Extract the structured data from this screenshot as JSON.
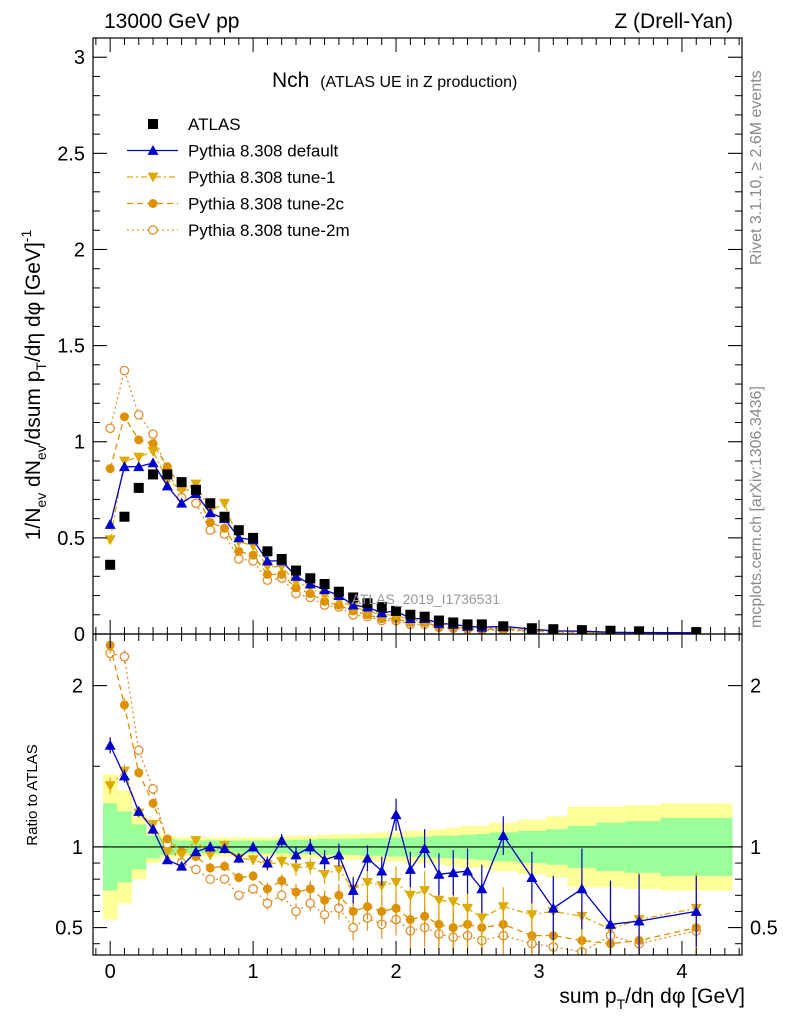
{
  "header": {
    "energy_label": "13000 GeV pp",
    "process_label": "Z (Drell-Yan)",
    "plot_title": "Nch",
    "plot_subtitle": "(ATLAS UE in Z production)",
    "watermark": "ATLAS_2019_I1736531",
    "side_label_rivet": "Rivet 3.1.10, ≥ 2.6M events",
    "side_label_mcplots": "mcplots.cern.ch [arXiv:1306.3436]"
  },
  "colors": {
    "atlas": "#000000",
    "default": "#0000cc",
    "tune1": "#ddaa00",
    "tune2c": "#dd9000",
    "tune2m": "#e09030",
    "band_inner": "#99ff99",
    "band_outer": "#ffff99"
  },
  "chart_data": [
    {
      "type": "scatter",
      "panel": "main",
      "xlabel": "sum p_T/dη dφ [GeV]",
      "ylabel": "1/N_ev dN_ev/dsum p_T/dη dφ [GeV]^-1",
      "xlim": [
        -0.12,
        4.42
      ],
      "ylim": [
        0,
        3.1
      ],
      "yticks": [
        0,
        0.5,
        1,
        1.5,
        2,
        2.5,
        3
      ],
      "ytick_labels": [
        "0",
        "0.5",
        "1",
        "1.5",
        "2",
        "2.5",
        "3"
      ],
      "legend_position": "top-left",
      "x": [
        0,
        0.1,
        0.2,
        0.3,
        0.4,
        0.5,
        0.6,
        0.7,
        0.8,
        0.9,
        1.0,
        1.1,
        1.2,
        1.3,
        1.4,
        1.5,
        1.6,
        1.7,
        1.8,
        1.9,
        2.0,
        2.1,
        2.2,
        2.3,
        2.4,
        2.5,
        2.6,
        2.75,
        2.95,
        3.1,
        3.3,
        3.5,
        3.7,
        4.1
      ],
      "series": [
        {
          "name": "ATLAS",
          "key": "atlas",
          "values": [
            0.36,
            0.61,
            0.76,
            0.83,
            0.83,
            0.79,
            0.75,
            0.68,
            0.61,
            0.54,
            0.5,
            0.43,
            0.39,
            0.33,
            0.29,
            0.26,
            0.22,
            0.19,
            0.16,
            0.14,
            0.12,
            0.1,
            0.09,
            0.07,
            0.06,
            0.05,
            0.05,
            0.04,
            0.03,
            0.025,
            0.02,
            0.017,
            0.014,
            0.01
          ]
        },
        {
          "name": "Pythia 8.308 default",
          "key": "default",
          "values": [
            0.57,
            0.87,
            0.87,
            0.89,
            0.77,
            0.68,
            0.73,
            0.63,
            0.6,
            0.5,
            0.49,
            0.38,
            0.38,
            0.3,
            0.26,
            0.23,
            0.2,
            0.15,
            0.14,
            0.11,
            0.12,
            0.08,
            0.08,
            0.055,
            0.05,
            0.04,
            0.035,
            0.04,
            0.025,
            0.016,
            0.015,
            0.009,
            0.008,
            0.006
          ]
        },
        {
          "name": "Pythia 8.308 tune-1",
          "key": "tune1",
          "values": [
            0.49,
            0.9,
            0.92,
            0.95,
            0.8,
            0.75,
            0.78,
            0.64,
            0.68,
            0.48,
            0.46,
            0.35,
            0.35,
            0.27,
            0.24,
            0.2,
            0.18,
            0.14,
            0.12,
            0.1,
            0.1,
            0.07,
            0.07,
            0.05,
            0.044,
            0.035,
            0.03,
            0.03,
            0.02,
            0.015,
            0.013,
            0.008,
            0.007,
            0.006
          ]
        },
        {
          "name": "Pythia 8.308 tune-2c",
          "key": "tune2c",
          "values": [
            0.86,
            1.13,
            1.01,
            0.99,
            0.87,
            0.76,
            0.73,
            0.58,
            0.55,
            0.43,
            0.41,
            0.31,
            0.31,
            0.24,
            0.21,
            0.17,
            0.15,
            0.12,
            0.1,
            0.08,
            0.08,
            0.06,
            0.06,
            0.04,
            0.035,
            0.03,
            0.025,
            0.025,
            0.017,
            0.012,
            0.01,
            0.007,
            0.006,
            0.005
          ]
        },
        {
          "name": "Pythia 8.308 tune-2m",
          "key": "tune2m",
          "values": [
            1.07,
            1.37,
            1.14,
            1.04,
            0.85,
            0.71,
            0.68,
            0.54,
            0.52,
            0.39,
            0.38,
            0.28,
            0.29,
            0.21,
            0.19,
            0.15,
            0.14,
            0.1,
            0.09,
            0.07,
            0.07,
            0.05,
            0.05,
            0.035,
            0.03,
            0.025,
            0.02,
            0.02,
            0.014,
            0.01,
            0.008,
            0.006,
            0.005,
            0.004
          ]
        }
      ]
    },
    {
      "type": "scatter",
      "panel": "ratio",
      "xlabel": "sum p_T/dη dφ [GeV]",
      "ylabel": "Ratio to ATLAS",
      "xlim": [
        -0.12,
        4.42
      ],
      "ylim": [
        0.33,
        2.32
      ],
      "yticks": [
        0.5,
        1,
        2
      ],
      "ytick_labels": [
        "0.5",
        "1",
        "2"
      ],
      "xticks": [
        0,
        1,
        2,
        3,
        4
      ],
      "xtick_labels": [
        "0",
        "1",
        "2",
        "3",
        "4"
      ],
      "bin_edges": [
        -0.05,
        0.05,
        0.15,
        0.25,
        0.35,
        0.45,
        0.55,
        0.65,
        0.75,
        0.85,
        0.95,
        1.05,
        1.15,
        1.25,
        1.35,
        1.45,
        1.55,
        1.65,
        1.75,
        1.85,
        1.95,
        2.05,
        2.15,
        2.25,
        2.35,
        2.45,
        2.55,
        2.65,
        2.85,
        3.05,
        3.2,
        3.4,
        3.6,
        3.85,
        4.35
      ],
      "band_inner": [
        0.27,
        0.22,
        0.14,
        0.07,
        0.05,
        0.04,
        0.04,
        0.04,
        0.04,
        0.04,
        0.04,
        0.04,
        0.04,
        0.045,
        0.045,
        0.05,
        0.05,
        0.05,
        0.055,
        0.055,
        0.06,
        0.06,
        0.065,
        0.07,
        0.07,
        0.075,
        0.08,
        0.09,
        0.1,
        0.11,
        0.13,
        0.15,
        0.16,
        0.18
      ],
      "band_outer": [
        0.45,
        0.35,
        0.2,
        0.1,
        0.07,
        0.06,
        0.06,
        0.06,
        0.06,
        0.06,
        0.06,
        0.06,
        0.065,
        0.07,
        0.07,
        0.075,
        0.08,
        0.08,
        0.085,
        0.09,
        0.09,
        0.1,
        0.1,
        0.11,
        0.12,
        0.13,
        0.13,
        0.15,
        0.17,
        0.19,
        0.25,
        0.25,
        0.26,
        0.27
      ],
      "x": [
        0,
        0.1,
        0.2,
        0.3,
        0.4,
        0.5,
        0.6,
        0.7,
        0.8,
        0.9,
        1.0,
        1.1,
        1.2,
        1.3,
        1.4,
        1.5,
        1.6,
        1.7,
        1.8,
        1.9,
        2.0,
        2.1,
        2.2,
        2.3,
        2.4,
        2.5,
        2.6,
        2.75,
        2.95,
        3.1,
        3.3,
        3.5,
        3.7,
        4.1
      ],
      "series": [
        {
          "name": "Pythia 8.308 default",
          "key": "default",
          "values": [
            1.63,
            1.44,
            1.22,
            1.11,
            0.92,
            0.88,
            0.97,
            1.0,
            0.99,
            0.93,
            1.0,
            0.9,
            1.04,
            0.95,
            1.0,
            0.92,
            0.95,
            0.73,
            0.93,
            0.85,
            1.2,
            0.86,
            0.99,
            0.83,
            0.84,
            0.85,
            0.74,
            1.07,
            0.81,
            0.62,
            0.74,
            0.52,
            0.54,
            0.6
          ],
          "errors": [
            0.05,
            0.04,
            0.03,
            0.03,
            0.02,
            0.02,
            0.02,
            0.03,
            0.03,
            0.03,
            0.03,
            0.04,
            0.04,
            0.05,
            0.05,
            0.06,
            0.07,
            0.08,
            0.08,
            0.09,
            0.1,
            0.11,
            0.12,
            0.13,
            0.14,
            0.14,
            0.15,
            0.12,
            0.16,
            0.2,
            0.25,
            0.27,
            0.29,
            0.22
          ]
        },
        {
          "name": "Pythia 8.308 tune-1",
          "key": "tune1",
          "values": [
            1.38,
            1.47,
            1.21,
            1.14,
            0.97,
            0.95,
            1.04,
            0.95,
            1.01,
            0.93,
            0.92,
            0.89,
            0.91,
            0.87,
            0.88,
            0.83,
            0.86,
            0.74,
            0.78,
            0.76,
            0.78,
            0.7,
            0.73,
            0.67,
            0.66,
            0.62,
            0.56,
            0.63,
            0.58,
            0.6,
            0.57,
            0.49,
            0.55,
            0.62
          ],
          "errors": [
            0.05,
            0.04,
            0.03,
            0.03,
            0.02,
            0.02,
            0.02,
            0.03,
            0.03,
            0.03,
            0.03,
            0.04,
            0.04,
            0.05,
            0.05,
            0.06,
            0.07,
            0.08,
            0.08,
            0.09,
            0.1,
            0.11,
            0.12,
            0.13,
            0.14,
            0.14,
            0.15,
            0.12,
            0.16,
            0.2,
            0.25,
            0.27,
            0.29,
            0.22
          ]
        },
        {
          "name": "Pythia 8.308 tune-2c",
          "key": "tune2c",
          "values": [
            2.25,
            1.88,
            1.46,
            1.27,
            1.05,
            0.97,
            0.94,
            0.87,
            0.88,
            0.81,
            0.82,
            0.74,
            0.79,
            0.72,
            0.74,
            0.67,
            0.7,
            0.6,
            0.63,
            0.6,
            0.62,
            0.55,
            0.57,
            0.52,
            0.5,
            0.52,
            0.5,
            0.52,
            0.45,
            0.45,
            0.42,
            0.4,
            0.42,
            0.5
          ],
          "errors": [
            0.05,
            0.04,
            0.03,
            0.03,
            0.02,
            0.02,
            0.02,
            0.03,
            0.03,
            0.03,
            0.03,
            0.04,
            0.04,
            0.05,
            0.05,
            0.06,
            0.07,
            0.08,
            0.08,
            0.09,
            0.1,
            0.11,
            0.12,
            0.13,
            0.14,
            0.14,
            0.15,
            0.12,
            0.16,
            0.2,
            0.25,
            0.27,
            0.29,
            0.22
          ]
        },
        {
          "name": "Pythia 8.308 tune-2m",
          "key": "tune2m",
          "values": [
            2.2,
            2.18,
            1.6,
            1.36,
            1.02,
            0.9,
            0.86,
            0.8,
            0.8,
            0.7,
            0.74,
            0.65,
            0.7,
            0.6,
            0.65,
            0.58,
            0.62,
            0.5,
            0.56,
            0.52,
            0.55,
            0.48,
            0.5,
            0.46,
            0.44,
            0.45,
            0.42,
            0.45,
            0.4,
            0.38,
            0.35,
            0.45,
            0.4,
            0.48
          ],
          "errors": [
            0.05,
            0.04,
            0.03,
            0.03,
            0.02,
            0.02,
            0.02,
            0.03,
            0.03,
            0.03,
            0.03,
            0.04,
            0.04,
            0.05,
            0.05,
            0.06,
            0.07,
            0.08,
            0.08,
            0.09,
            0.1,
            0.11,
            0.12,
            0.13,
            0.14,
            0.14,
            0.15,
            0.12,
            0.16,
            0.2,
            0.25,
            0.27,
            0.29,
            0.22
          ]
        }
      ]
    }
  ],
  "legend": [
    {
      "key": "atlas",
      "label": "ATLAS"
    },
    {
      "key": "default",
      "label": "Pythia 8.308 default"
    },
    {
      "key": "tune1",
      "label": "Pythia 8.308 tune-1"
    },
    {
      "key": "tune2c",
      "label": "Pythia 8.308 tune-2c"
    },
    {
      "key": "tune2m",
      "label": "Pythia 8.308 tune-2m"
    }
  ]
}
